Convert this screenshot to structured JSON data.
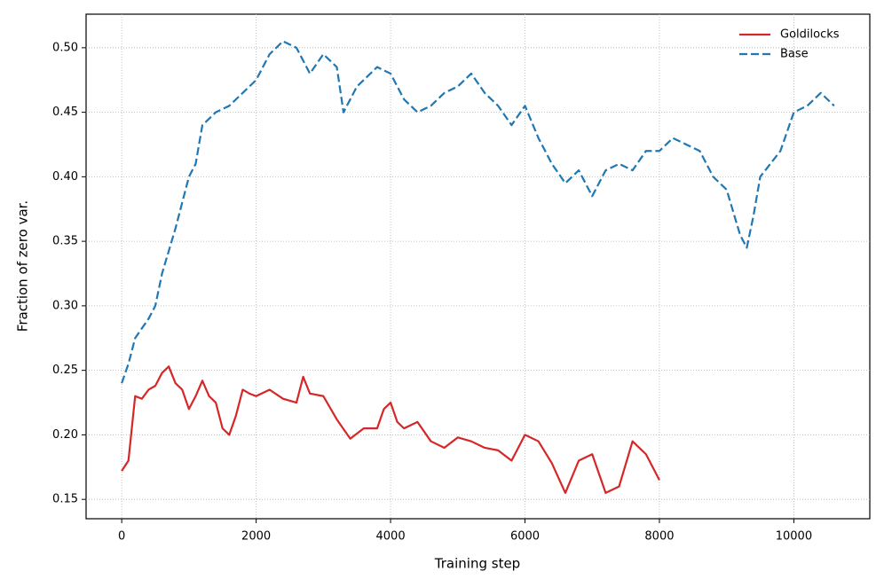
{
  "chart_data": {
    "type": "line",
    "xlabel": "Training step",
    "ylabel": "Fraction of zero var.",
    "xlim": [
      -530,
      11130
    ],
    "ylim": [
      0.135,
      0.526
    ],
    "xticks": [
      0,
      2000,
      4000,
      6000,
      8000,
      10000
    ],
    "yticks": [
      0.15,
      {
        "value": 0.2,
        "label": "0.20"
      },
      0.25,
      {
        "value": 0.3,
        "label": "0.30"
      },
      0.35,
      {
        "value": 0.4,
        "label": "0.40"
      },
      0.45,
      {
        "value": 0.5,
        "label": "0.50"
      }
    ],
    "grid": true,
    "legend": "upper right",
    "series": [
      {
        "name": "Goldilocks",
        "color": "#d62728",
        "linestyle": "solid",
        "x": [
          0,
          100,
          200,
          300,
          400,
          500,
          600,
          700,
          800,
          900,
          1000,
          1100,
          1200,
          1300,
          1400,
          1500,
          1600,
          1700,
          1800,
          1900,
          2000,
          2200,
          2400,
          2600,
          2700,
          2800,
          3000,
          3200,
          3400,
          3600,
          3800,
          3900,
          4000,
          4100,
          4200,
          4400,
          4600,
          4800,
          5000,
          5200,
          5400,
          5600,
          5800,
          6000,
          6200,
          6400,
          6600,
          6800,
          7000,
          7200,
          7400,
          7600,
          7800,
          8000
        ],
        "values": [
          0.172,
          0.18,
          0.23,
          0.228,
          0.235,
          0.238,
          0.248,
          0.253,
          0.24,
          0.235,
          0.22,
          0.23,
          0.242,
          0.23,
          0.225,
          0.205,
          0.2,
          0.215,
          0.235,
          0.232,
          0.23,
          0.235,
          0.228,
          0.225,
          0.245,
          0.232,
          0.23,
          0.212,
          0.197,
          0.205,
          0.205,
          0.22,
          0.225,
          0.21,
          0.205,
          0.21,
          0.195,
          0.19,
          0.198,
          0.195,
          0.19,
          0.188,
          0.18,
          0.2,
          0.195,
          0.178,
          0.155,
          0.18,
          0.185,
          0.155,
          0.16,
          0.195,
          0.185,
          0.165
        ]
      },
      {
        "name": "Base",
        "color": "#1f77b4",
        "linestyle": "dashed",
        "x": [
          0,
          100,
          200,
          400,
          500,
          600,
          800,
          1000,
          1100,
          1200,
          1400,
          1600,
          1800,
          2000,
          2200,
          2400,
          2600,
          2800,
          3000,
          3200,
          3300,
          3500,
          3800,
          4000,
          4200,
          4400,
          4600,
          4800,
          5000,
          5200,
          5400,
          5600,
          5800,
          6000,
          6200,
          6400,
          6600,
          6800,
          7000,
          7200,
          7400,
          7600,
          7800,
          8000,
          8200,
          8400,
          8600,
          8800,
          9000,
          9200,
          9300,
          9400,
          9500,
          9800,
          10000,
          10200,
          10400,
          10600
        ],
        "values": [
          0.24,
          0.255,
          0.275,
          0.29,
          0.3,
          0.325,
          0.36,
          0.4,
          0.41,
          0.44,
          0.45,
          0.455,
          0.465,
          0.475,
          0.495,
          0.505,
          0.5,
          0.48,
          0.495,
          0.485,
          0.45,
          0.47,
          0.485,
          0.48,
          0.46,
          0.45,
          0.455,
          0.465,
          0.47,
          0.48,
          0.465,
          0.455,
          0.44,
          0.455,
          0.43,
          0.41,
          0.395,
          0.405,
          0.385,
          0.405,
          0.41,
          0.405,
          0.42,
          0.42,
          0.43,
          0.425,
          0.42,
          0.4,
          0.39,
          0.355,
          0.345,
          0.37,
          0.4,
          0.42,
          0.45,
          0.455,
          0.465,
          0.455
        ]
      }
    ]
  }
}
